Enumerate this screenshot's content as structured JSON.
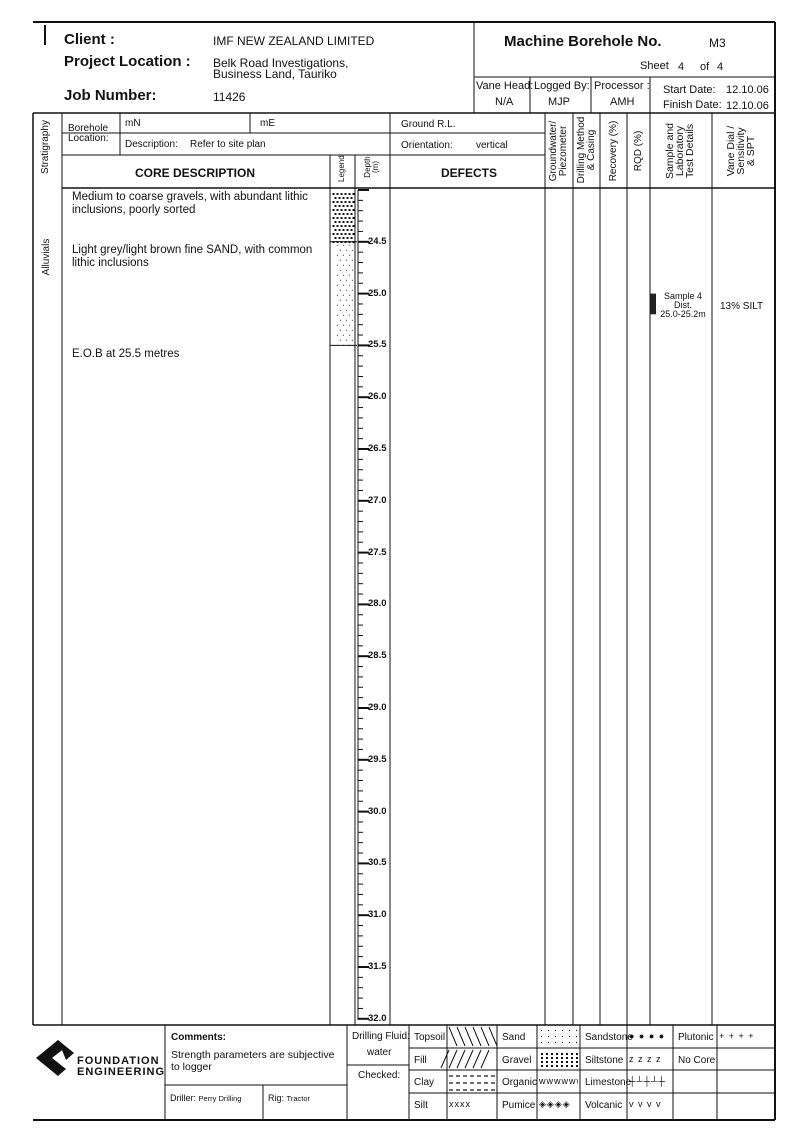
{
  "header": {
    "client_label": "Client :",
    "client": "IMF NEW ZEALAND LIMITED",
    "project_label": "Project Location :",
    "project_line1": "Belk Road Investigations,",
    "project_line2": "Business Land, Tauriko",
    "job_label": "Job Number:",
    "job": "11426",
    "borehole_label": "Machine Borehole No.",
    "borehole": "M3",
    "sheet_label": "Sheet",
    "sheet": "4",
    "of_label": "of",
    "sheet_total": "4",
    "vane_head_label": "Vane Head:",
    "vane_head": "N/A",
    "logged_by_label": "Logged By:",
    "logged_by": "MJP",
    "processor_label": "Processor :",
    "processor": "AMH",
    "start_label": "Start Date:",
    "start": "12.10.06",
    "finish_label": "Finish Date:",
    "finish": "12.10.06"
  },
  "columns": {
    "stratigraphy": "Stratigraphy",
    "borehole_loc_1": "Borehole",
    "borehole_loc_2": "Location:",
    "mn": "mN",
    "me": "mE",
    "description_label": "Description:",
    "description": "Refer to site plan",
    "ground_rl": "Ground R.L.",
    "orientation_label": "Orientation:",
    "orientation": "vertical",
    "core_description": "CORE DESCRIPTION",
    "legend": "Legend",
    "depth_1": "Depth",
    "depth_2": "(m)",
    "defects": "DEFECTS",
    "groundwater_1": "Groundwater/",
    "groundwater_2": "Piezometer",
    "drilling_1": "Drilling Method",
    "drilling_2": "& Casing",
    "recovery": "Recovery (%)",
    "rqd": "RQD (%)",
    "sample_1": "Sample and",
    "sample_2": "Laboratory",
    "sample_3": "Test Details",
    "vane_1": "Vane Dial /",
    "vane_2": "Sensitivity",
    "vane_3": "& SPT"
  },
  "log": {
    "stratigraphy_unit": "Alluvials",
    "layers": [
      {
        "from": 24.0,
        "to": 24.5,
        "soil": "gravel",
        "description": "Medium to coarse gravels, with abundant lithic inclusions, poorly sorted"
      },
      {
        "from": 24.5,
        "to": 25.5,
        "soil": "sand",
        "description": "Light grey/light brown fine SAND, with common lithic inclusions"
      }
    ],
    "eob": "E.O.B at 25.5 metres",
    "depth_labels": [
      "24.5",
      "25.0",
      "25.5",
      "26.0",
      "26.5",
      "27.0",
      "27.5",
      "28.0",
      "28.5",
      "29.0",
      "29.5",
      "30.0",
      "30.5",
      "31.0",
      "31.5",
      "32.0"
    ],
    "sample": {
      "from": 25.0,
      "to": 25.2,
      "line1": "Sample 4",
      "line2": "Dist.",
      "line3": "25.0-25.2m",
      "result": "13% SILT"
    }
  },
  "footer": {
    "company_1": "FOUNDATION",
    "company_2": "ENGINEERING",
    "comments_label": "Comments:",
    "comments_1": "Strength parameters are subjective",
    "comments_2": "to logger",
    "driller_label": "Driller:",
    "driller": "Perry Drilling",
    "rig_label": "Rig:",
    "rig": "Tractor",
    "fluid_label": "Drilling Fluid:",
    "fluid": "water",
    "checked_label": "Checked:",
    "legend_key": [
      [
        "Topsoil",
        "Sand",
        "Sandstone",
        "Plutonic"
      ],
      [
        "Fill",
        "Gravel",
        "Siltstone",
        "No Core"
      ],
      [
        "Clay",
        "Organic",
        "Limestone",
        ""
      ],
      [
        "Silt",
        "Pumice",
        "Volcanic",
        ""
      ]
    ]
  }
}
